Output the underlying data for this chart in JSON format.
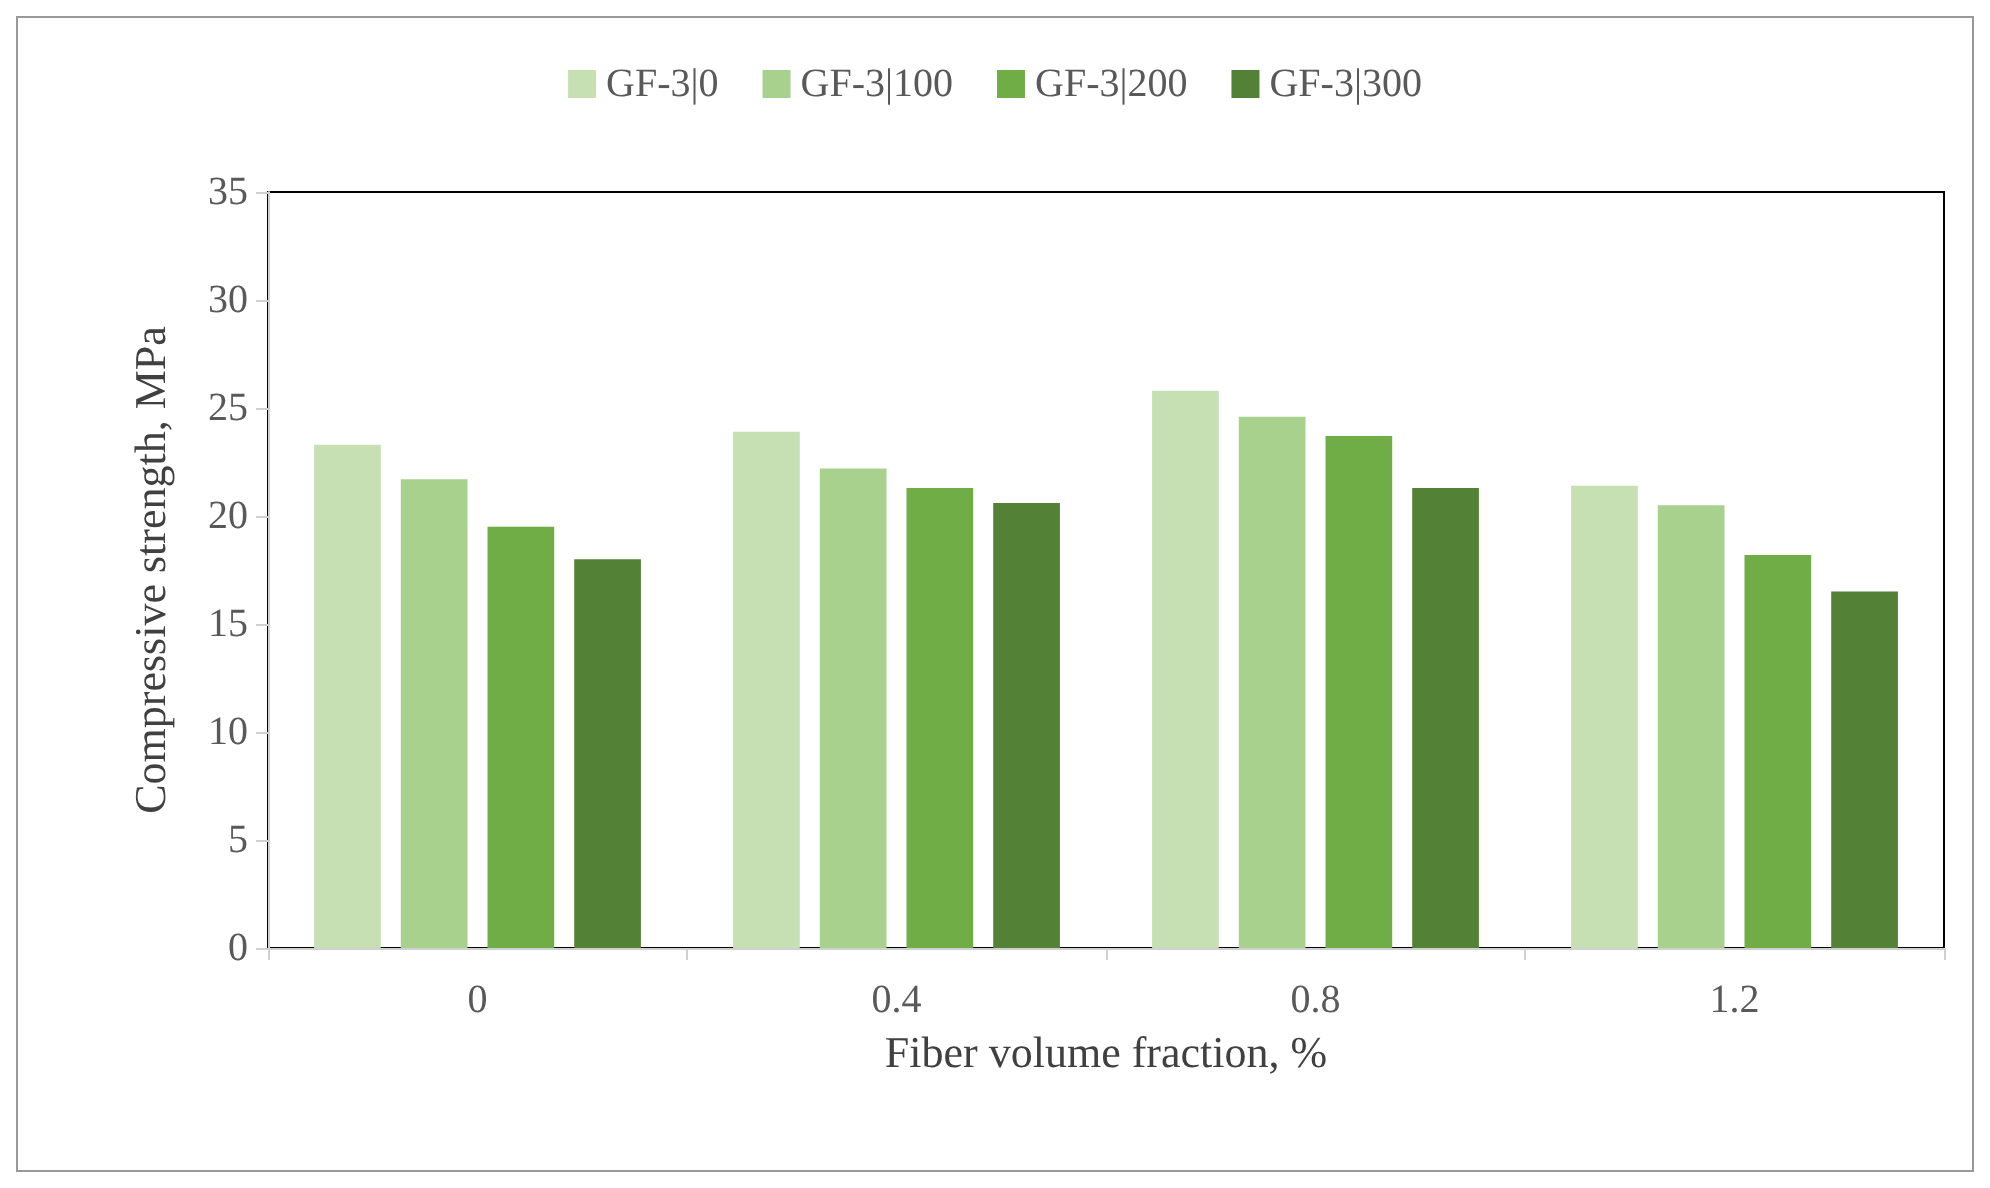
{
  "chart_data": {
    "type": "bar",
    "xlabel": "Fiber volume fraction, %",
    "ylabel": "Compressive strength, MPa",
    "categories": [
      "0",
      "0.4",
      "0.8",
      "1.2"
    ],
    "series": [
      {
        "name": "GF-3|0",
        "color": "#c6e0b4",
        "values": [
          23.3,
          23.9,
          25.8,
          21.4
        ]
      },
      {
        "name": "GF-3|100",
        "color": "#a9d18e",
        "values": [
          21.7,
          22.2,
          24.6,
          20.5
        ]
      },
      {
        "name": "GF-3|200",
        "color": "#70ad47",
        "values": [
          19.5,
          21.3,
          23.7,
          18.2
        ]
      },
      {
        "name": "GF-3|300",
        "color": "#538135",
        "values": [
          18.0,
          20.6,
          21.3,
          16.5
        ]
      }
    ],
    "ylim": [
      0,
      35
    ],
    "yticks": [
      0,
      5,
      10,
      15,
      20,
      25,
      30,
      35
    ],
    "grid": false,
    "legend": "top"
  }
}
